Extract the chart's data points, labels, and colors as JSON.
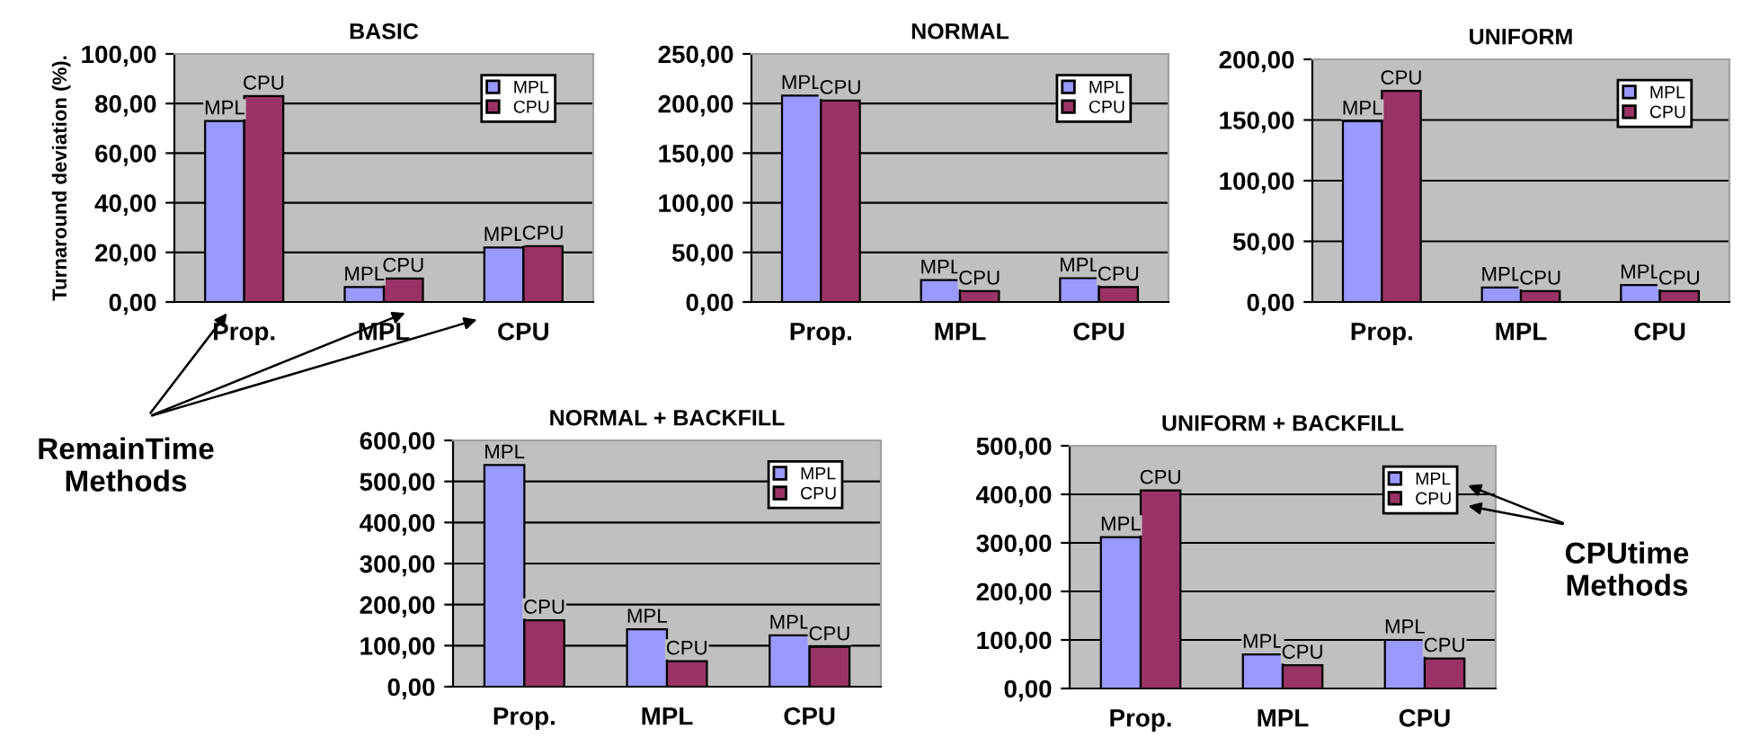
{
  "chart_data": [
    {
      "type": "bar",
      "title": "BASIC",
      "ylabel": "Turnaround deviation (%).",
      "categories": [
        "Prop.",
        "MPL",
        "CPU"
      ],
      "series": [
        {
          "name": "MPL",
          "color": "#9999ff",
          "values": [
            73,
            6,
            22
          ],
          "value_labels": [
            "MPL",
            "MPL",
            "MPL"
          ]
        },
        {
          "name": "CPU",
          "color": "#993366",
          "values": [
            83,
            9.5,
            22.5
          ],
          "value_labels": [
            "CPU",
            "CPU",
            "CPU"
          ]
        }
      ],
      "ylim": [
        0,
        100
      ],
      "yticks": [
        {
          "value": 0,
          "label": "0,00"
        },
        {
          "value": 20,
          "label": "20,00"
        },
        {
          "value": 40,
          "label": "40,00"
        },
        {
          "value": 60,
          "label": "60,00"
        },
        {
          "value": 80,
          "label": "80,00"
        },
        {
          "value": 100,
          "label": "100,00"
        }
      ],
      "grid": "y",
      "legend": "top right",
      "annotations": [
        "RemainTime\nMethods"
      ]
    },
    {
      "type": "bar",
      "title": "NORMAL",
      "categories": [
        "Prop.",
        "MPL",
        "CPU"
      ],
      "series": [
        {
          "name": "MPL",
          "color": "#9999ff",
          "values": [
            208,
            22,
            24
          ],
          "value_labels": [
            "MPL",
            "MPL",
            "MPL"
          ]
        },
        {
          "name": "CPU",
          "color": "#993366",
          "values": [
            203,
            11,
            15
          ],
          "value_labels": [
            "CPU",
            "CPU",
            "CPU"
          ]
        }
      ],
      "ylim": [
        0,
        250
      ],
      "yticks": [
        {
          "value": 0,
          "label": "0,00"
        },
        {
          "value": 50,
          "label": "50,00"
        },
        {
          "value": 100,
          "label": "100,00"
        },
        {
          "value": 150,
          "label": "150,00"
        },
        {
          "value": 200,
          "label": "200,00"
        },
        {
          "value": 250,
          "label": "250,00"
        }
      ],
      "grid": "y",
      "legend": "top right"
    },
    {
      "type": "bar",
      "title": "UNIFORM",
      "categories": [
        "Prop.",
        "MPL",
        "CPU"
      ],
      "series": [
        {
          "name": "MPL",
          "color": "#9999ff",
          "values": [
            149,
            12,
            14
          ],
          "value_labels": [
            "MPL",
            "MPL",
            "MPL"
          ]
        },
        {
          "name": "CPU",
          "color": "#993366",
          "values": [
            174,
            9,
            9
          ],
          "value_labels": [
            "CPU",
            "CPU",
            "CPU"
          ]
        }
      ],
      "ylim": [
        0,
        200
      ],
      "yticks": [
        {
          "value": 0,
          "label": "0,00"
        },
        {
          "value": 50,
          "label": "50,00"
        },
        {
          "value": 100,
          "label": "100,00"
        },
        {
          "value": 150,
          "label": "150,00"
        },
        {
          "value": 200,
          "label": "200,00"
        }
      ],
      "grid": "y",
      "legend": "top right"
    },
    {
      "type": "bar",
      "title": "NORMAL + BACKFILL",
      "categories": [
        "Prop.",
        "MPL",
        "CPU"
      ],
      "series": [
        {
          "name": "MPL",
          "color": "#9999ff",
          "values": [
            540,
            140,
            125
          ],
          "value_labels": [
            "MPL",
            "MPL",
            "MPL"
          ]
        },
        {
          "name": "CPU",
          "color": "#993366",
          "values": [
            162,
            62,
            97
          ],
          "value_labels": [
            "CPU",
            "CPU",
            "CPU"
          ]
        }
      ],
      "ylim": [
        0,
        600
      ],
      "yticks": [
        {
          "value": 0,
          "label": "0,00"
        },
        {
          "value": 100,
          "label": "100,00"
        },
        {
          "value": 200,
          "label": "200,00"
        },
        {
          "value": 300,
          "label": "300,00"
        },
        {
          "value": 400,
          "label": "400,00"
        },
        {
          "value": 500,
          "label": "500,00"
        },
        {
          "value": 600,
          "label": "600,00"
        }
      ],
      "grid": "y",
      "legend": "top right"
    },
    {
      "type": "bar",
      "title": "UNIFORM + BACKFILL",
      "categories": [
        "Prop.",
        "MPL",
        "CPU"
      ],
      "series": [
        {
          "name": "MPL",
          "color": "#9999ff",
          "values": [
            312,
            70,
            100
          ],
          "value_labels": [
            "MPL",
            "MPL",
            "MPL"
          ]
        },
        {
          "name": "CPU",
          "color": "#993366",
          "values": [
            408,
            48,
            62
          ],
          "value_labels": [
            "CPU",
            "CPU",
            "CPU"
          ]
        }
      ],
      "ylim": [
        0,
        500
      ],
      "yticks": [
        {
          "value": 0,
          "label": "0,00"
        },
        {
          "value": 100,
          "label": "100,00"
        },
        {
          "value": 200,
          "label": "200,00"
        },
        {
          "value": 300,
          "label": "300,00"
        },
        {
          "value": 400,
          "label": "400,00"
        },
        {
          "value": 500,
          "label": "500,00"
        }
      ],
      "grid": "y",
      "legend": "top right",
      "annotations": [
        "CPUtime\nMethods"
      ]
    }
  ]
}
